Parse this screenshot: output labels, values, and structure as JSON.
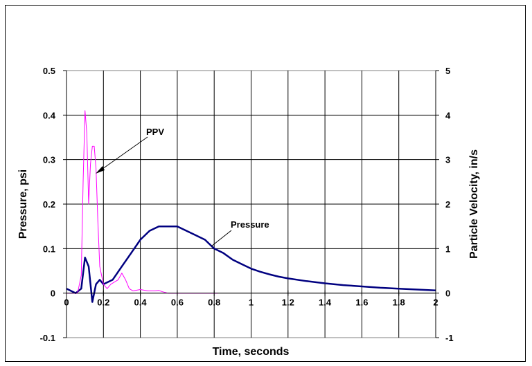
{
  "chart_data": {
    "type": "line",
    "title": "",
    "xlabel": "Time, seconds",
    "ylabel_left": "Pressure, psi",
    "ylabel_right": "Particle Velocity, in/s",
    "xlim": [
      0,
      2
    ],
    "ylim_left": [
      -0.1,
      0.5
    ],
    "ylim_right": [
      -1,
      5
    ],
    "x_ticks": [
      "0",
      "0.2",
      "0.4",
      "0.6",
      "0.8",
      "1",
      "1.2",
      "1.4",
      "1.6",
      "1.8",
      "2"
    ],
    "y_left_ticks": [
      "-0.1",
      "0",
      "0.1",
      "0.2",
      "0.3",
      "0.4",
      "0.5"
    ],
    "y_right_ticks": [
      "-1",
      "0",
      "1",
      "2",
      "3",
      "4",
      "5"
    ],
    "grid": "vertical-and-horizontal",
    "legend": "none",
    "annotations": [
      {
        "text": "PPV",
        "points_to_series": "PPV"
      },
      {
        "text": "Pressure",
        "points_to_series": "Pressure"
      }
    ],
    "series": [
      {
        "name": "Pressure",
        "axis": "left",
        "color": "#000080",
        "x": [
          0,
          0.05,
          0.08,
          0.1,
          0.12,
          0.14,
          0.16,
          0.18,
          0.2,
          0.25,
          0.3,
          0.35,
          0.4,
          0.45,
          0.5,
          0.55,
          0.6,
          0.65,
          0.7,
          0.75,
          0.8,
          0.85,
          0.9,
          0.95,
          1.0,
          1.05,
          1.1,
          1.15,
          1.2,
          1.3,
          1.4,
          1.5,
          1.6,
          1.7,
          1.8,
          1.9,
          2.0
        ],
        "y": [
          0.01,
          0.0,
          0.01,
          0.08,
          0.06,
          -0.02,
          0.02,
          0.03,
          0.02,
          0.03,
          0.06,
          0.09,
          0.12,
          0.14,
          0.15,
          0.15,
          0.15,
          0.14,
          0.13,
          0.12,
          0.1,
          0.09,
          0.075,
          0.065,
          0.055,
          0.048,
          0.042,
          0.037,
          0.033,
          0.027,
          0.022,
          0.018,
          0.015,
          0.012,
          0.01,
          0.008,
          0.006
        ]
      },
      {
        "name": "PPV",
        "axis": "right",
        "color": "#ff00ff",
        "x": [
          0,
          0.06,
          0.08,
          0.09,
          0.1,
          0.11,
          0.12,
          0.13,
          0.14,
          0.15,
          0.16,
          0.17,
          0.18,
          0.19,
          0.2,
          0.22,
          0.24,
          0.26,
          0.28,
          0.3,
          0.32,
          0.34,
          0.36,
          0.4,
          0.44,
          0.48,
          0.5,
          0.52,
          0.55,
          0.6,
          0.7,
          0.82
        ],
        "y": [
          0.0,
          0.0,
          0.4,
          2.5,
          4.1,
          3.6,
          2.0,
          2.9,
          3.3,
          3.3,
          2.8,
          1.6,
          0.6,
          0.4,
          0.2,
          0.1,
          0.2,
          0.25,
          0.3,
          0.45,
          0.3,
          0.1,
          0.05,
          0.08,
          0.05,
          0.05,
          0.06,
          0.03,
          0.0,
          0.0,
          0.0,
          0.0
        ]
      }
    ]
  }
}
